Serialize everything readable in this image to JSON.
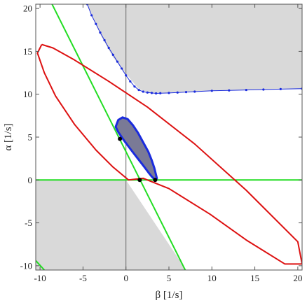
{
  "chart_data": {
    "type": "line",
    "xlabel": "β [1/s]",
    "ylabel": "α [1/s]",
    "xlim": [
      -10.5,
      20.5
    ],
    "ylim": [
      -10.5,
      20.5
    ],
    "x_ticks": [
      -10,
      -5,
      0,
      5,
      10,
      15,
      20
    ],
    "y_ticks": [
      -10,
      -5,
      0,
      5,
      10,
      15,
      20
    ],
    "x_tick_labels": [
      "-10",
      "-5",
      "0",
      "5",
      "10",
      "15",
      "20"
    ],
    "y_tick_labels": [
      "-10",
      "-5",
      "0",
      "5",
      "10",
      "15",
      "20"
    ],
    "grid": false,
    "colors": {
      "shade": "#d9d9d9",
      "green": "#22dd22",
      "red": "#dd1111",
      "blue": "#1a2bdd",
      "region_fill": "#7a7a96",
      "region_edge": "#1a2bdd",
      "vline": "#666666"
    },
    "shaded_regions": [
      {
        "polygon": [
          [
            -4.5,
            20.5
          ],
          [
            20.5,
            20.5
          ],
          [
            20.5,
            10.65
          ],
          [
            18,
            10.6
          ],
          [
            14,
            10.5
          ],
          [
            10,
            10.4
          ],
          [
            7,
            10.3
          ],
          [
            5,
            10.2
          ],
          [
            3,
            10.1
          ],
          [
            1.5,
            10.6
          ],
          [
            0,
            12.4
          ],
          [
            -1.5,
            14.3
          ],
          [
            -3,
            17.0
          ],
          [
            -4.5,
            20.5
          ]
        ]
      },
      {
        "polygon": [
          [
            -10.5,
            0
          ],
          [
            0,
            0
          ],
          [
            7,
            -10.5
          ],
          [
            -10.5,
            -10.5
          ]
        ]
      }
    ],
    "green_lines": [
      {
        "x": [
          -10.5,
          20.5
        ],
        "y": [
          0,
          0
        ]
      },
      {
        "x": [
          -8.6,
          6.9
        ],
        "y": [
          20.5,
          -10.5
        ]
      },
      {
        "x": [
          -10.5,
          -9.5
        ],
        "y": [
          -9.4,
          -10.5
        ]
      }
    ],
    "vertical_line": {
      "x": 0
    },
    "red_ellipse": {
      "x": [
        -9.8,
        -8.5,
        -6.0,
        -2.0,
        2.5,
        8.0,
        14.0,
        20.0,
        20.5,
        18.5,
        14.0,
        9.8,
        5.0,
        2.0,
        0.3,
        -1.5,
        -3.5,
        -6.0,
        -8.2,
        -9.5,
        -10.3,
        -9.8
      ],
      "y": [
        15.8,
        15.4,
        14.0,
        11.5,
        8.5,
        4.2,
        -1.2,
        -7.2,
        -9.8,
        -9.8,
        -7.0,
        -4.0,
        -1.0,
        0.2,
        0.0,
        1.5,
        3.5,
        6.5,
        9.8,
        12.5,
        14.8,
        15.8
      ]
    },
    "blue_curve": {
      "x": [
        -4.5,
        -4.0,
        -3.5,
        -3.0,
        -2.5,
        -2.0,
        -1.5,
        -1.0,
        -0.5,
        0.0,
        0.5,
        1.0,
        1.5,
        2.0,
        2.5,
        3.0,
        3.5,
        4.0,
        5.0,
        6.0,
        7.0,
        8.0,
        10.0,
        12.0,
        14.0,
        16.0,
        18.0,
        20.5
      ],
      "y": [
        20.5,
        19.2,
        18.2,
        17.2,
        16.3,
        15.4,
        14.6,
        13.8,
        13.0,
        12.2,
        11.5,
        10.9,
        10.5,
        10.3,
        10.2,
        10.15,
        10.1,
        10.12,
        10.15,
        10.2,
        10.25,
        10.3,
        10.4,
        10.45,
        10.5,
        10.55,
        10.6,
        10.65
      ]
    },
    "dark_region": {
      "x": [
        -1.2,
        -0.9,
        -0.4,
        0.2,
        0.8,
        1.4,
        2.0,
        2.6,
        3.0,
        3.3,
        3.5,
        3.6,
        3.5,
        3.3,
        3.0,
        2.6,
        2.0,
        1.3,
        0.6,
        0.0,
        -0.5,
        -0.9,
        -1.2
      ],
      "y": [
        6.2,
        7.0,
        7.3,
        7.1,
        6.4,
        5.5,
        4.4,
        3.3,
        2.3,
        1.4,
        0.6,
        0.2,
        0.0,
        0.1,
        0.4,
        0.9,
        1.7,
        2.6,
        3.5,
        4.3,
        5.0,
        5.6,
        6.2
      ]
    },
    "points": {
      "x": [
        -0.7,
        1.6,
        3.4
      ],
      "y": [
        4.8,
        0.0,
        0.0
      ]
    }
  }
}
